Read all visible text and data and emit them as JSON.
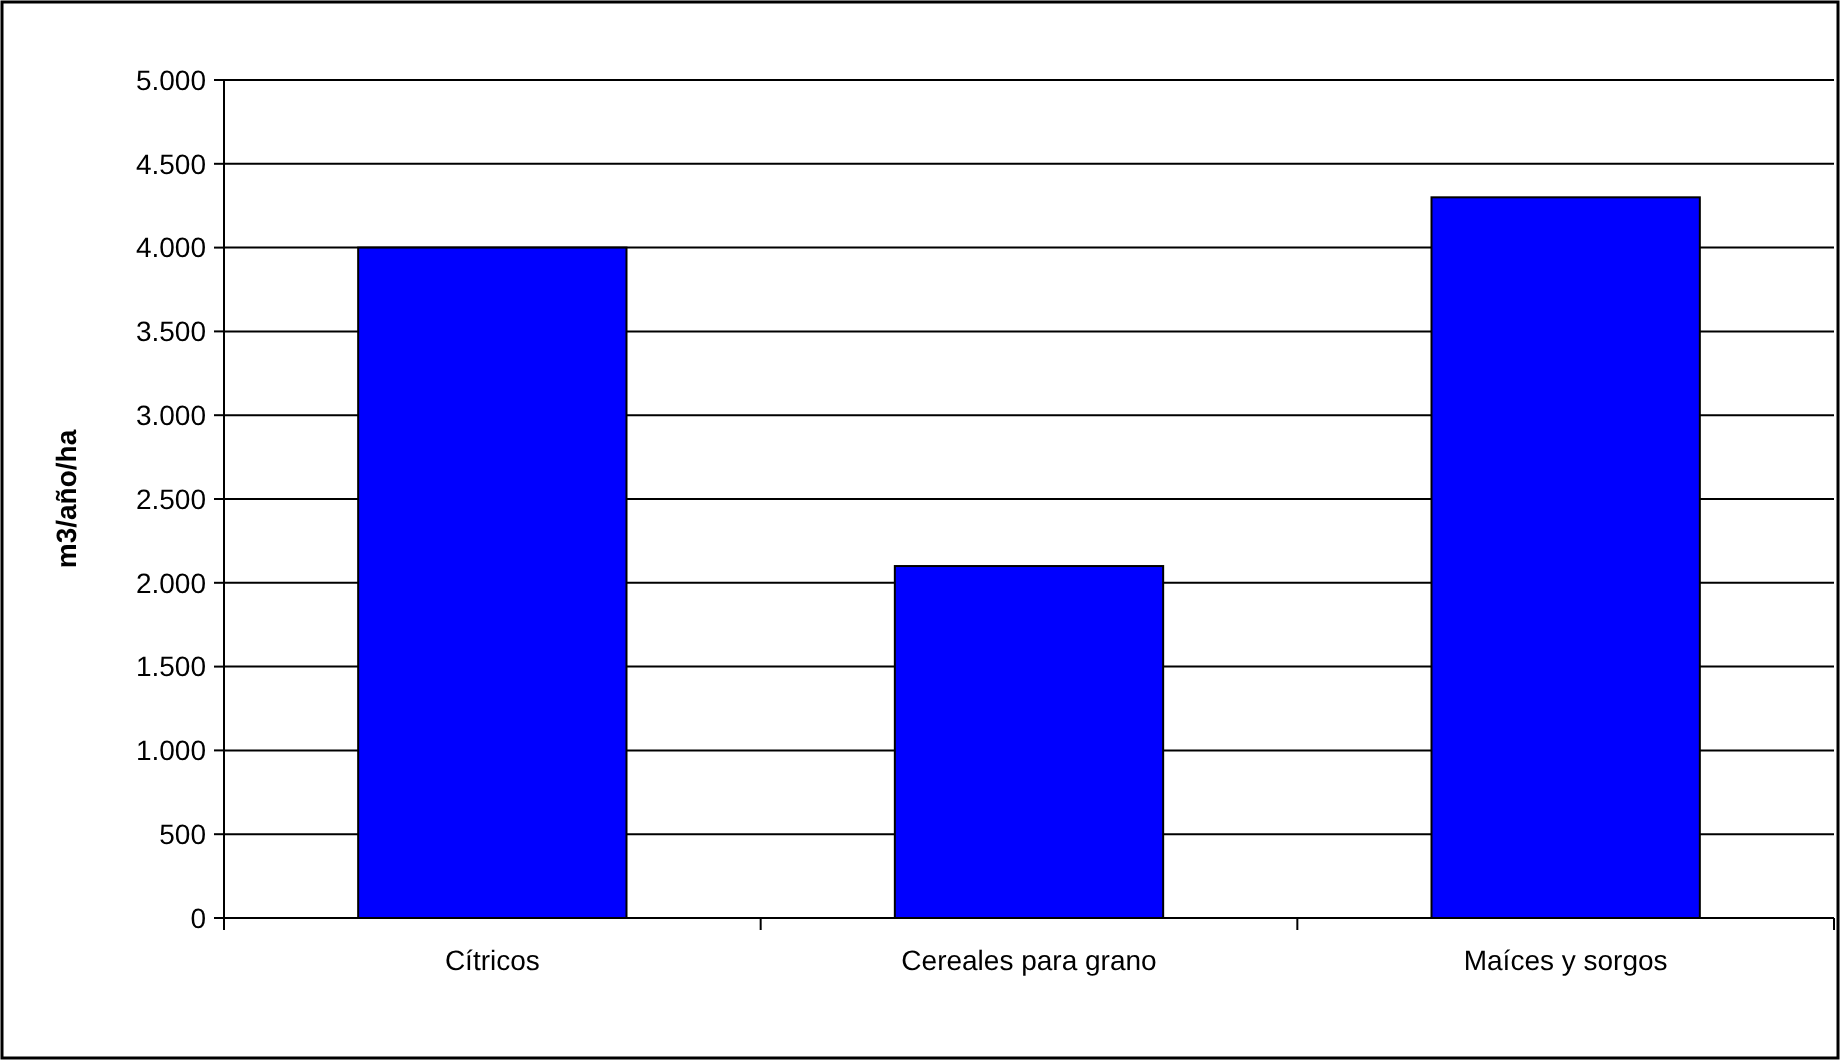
{
  "chart_data": {
    "type": "bar",
    "ylabel": "m3/año/ha",
    "categories": [
      "Cítricos",
      "Cereales para grano",
      "Maíces y sorgos"
    ],
    "series": [
      {
        "color": "#0000ff",
        "values": [
          4000,
          2100,
          4300
        ]
      }
    ],
    "ylim": [
      0,
      5000
    ],
    "yticks": [
      0,
      500,
      {
        "value": 1000,
        "label": "1.000"
      },
      {
        "value": 1500,
        "label": "1.500"
      },
      {
        "value": 2000,
        "label": "2.000"
      },
      {
        "value": 2500,
        "label": "2.500"
      },
      {
        "value": 3000,
        "label": "3.000"
      },
      {
        "value": 3500,
        "label": "3.500"
      },
      {
        "value": 4000,
        "label": "4.000"
      },
      {
        "value": 4500,
        "label": "4.500"
      },
      {
        "value": 5000,
        "label": "5.000"
      }
    ],
    "grid": "y"
  }
}
